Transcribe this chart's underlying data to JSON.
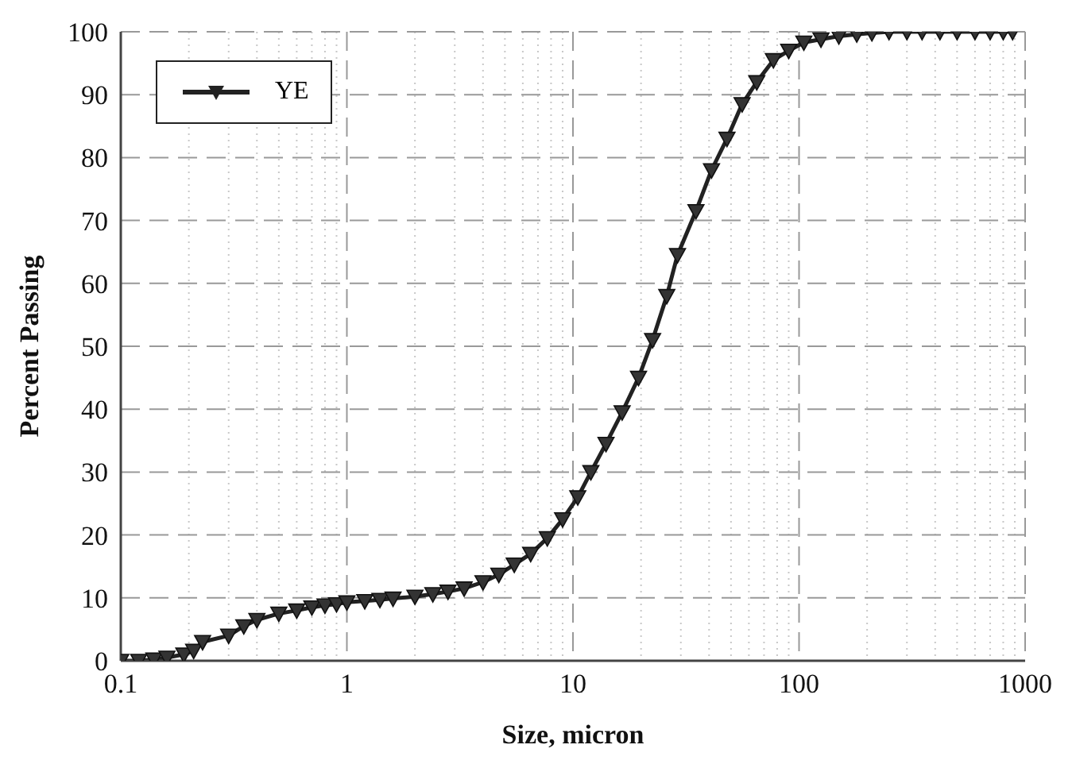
{
  "chart_data": {
    "type": "line",
    "xlabel": "Size, micron",
    "ylabel": "Percent Passing",
    "log": "x",
    "grid": true,
    "legend": "top left",
    "marker": "triangle",
    "line_style": "solid",
    "xlim": [
      0.1,
      1000
    ],
    "xticks": [
      0.1,
      {
        "value": 0.2,
        "label": null
      },
      {
        "value": 0.3,
        "label": null
      },
      {
        "value": 0.4,
        "label": null
      },
      {
        "value": 0.5,
        "label": null
      },
      {
        "value": 0.6,
        "label": null
      },
      {
        "value": 0.7,
        "label": null
      },
      {
        "value": 0.8,
        "label": null
      },
      {
        "value": 0.9,
        "label": null
      },
      1,
      {
        "value": 2,
        "label": null
      },
      {
        "value": 3,
        "label": null
      },
      {
        "value": 4,
        "label": null
      },
      {
        "value": 5,
        "label": null
      },
      {
        "value": 6,
        "label": null
      },
      {
        "value": 7,
        "label": null
      },
      {
        "value": 8,
        "label": null
      },
      {
        "value": 9,
        "label": null
      },
      10,
      {
        "value": 20,
        "label": null
      },
      {
        "value": 30,
        "label": null
      },
      {
        "value": 40,
        "label": null
      },
      {
        "value": 50,
        "label": null
      },
      {
        "value": 60,
        "label": null
      },
      {
        "value": 70,
        "label": null
      },
      {
        "value": 80,
        "label": null
      },
      {
        "value": 90,
        "label": null
      },
      100,
      {
        "value": 200,
        "label": null
      },
      {
        "value": 300,
        "label": null
      },
      {
        "value": 400,
        "label": null
      },
      {
        "value": 500,
        "label": null
      },
      {
        "value": 600,
        "label": null
      },
      {
        "value": 700,
        "label": null
      },
      {
        "value": 800,
        "label": null
      },
      {
        "value": 900,
        "label": null
      },
      1000
    ],
    "ylim": [
      0,
      100
    ],
    "yticks": [
      0,
      10,
      20,
      30,
      40,
      50,
      60,
      70,
      80,
      90,
      100
    ],
    "x": [
      0.1,
      0.12,
      0.14,
      0.16,
      0.19,
      0.21,
      0.23,
      0.3,
      0.35,
      0.4,
      0.5,
      0.6,
      0.7,
      0.8,
      0.9,
      1,
      1.2,
      1.4,
      1.6,
      2,
      2.4,
      2.8,
      3.3,
      4,
      4.7,
      5.5,
      6.5,
      7.7,
      9,
      10.5,
      12,
      14,
      16.5,
      19.5,
      22.5,
      26,
      29,
      35,
      41,
      48,
      56,
      65,
      77,
      90,
      105,
      125,
      150,
      180,
      210,
      250,
      300,
      350,
      420,
      500,
      600,
      700,
      800,
      880
    ],
    "series": [
      {
        "name": "YE",
        "color": "#222222",
        "values": [
          0,
          0,
          0.2,
          0.5,
          1,
          1.6,
          3,
          4,
          5.5,
          6.5,
          7.5,
          8,
          8.5,
          8.8,
          9,
          9.3,
          9.5,
          9.7,
          9.9,
          10.2,
          10.6,
          11,
          11.5,
          12.5,
          13.7,
          15.3,
          17,
          19.5,
          22.5,
          26,
          30,
          34.5,
          39.5,
          45,
          51,
          58,
          64.5,
          71.5,
          78,
          83,
          88.5,
          92,
          95.5,
          97,
          98.3,
          98.8,
          99.3,
          99.6,
          99.8,
          100,
          100,
          100,
          100,
          100,
          100,
          100,
          100,
          100
        ]
      }
    ]
  }
}
